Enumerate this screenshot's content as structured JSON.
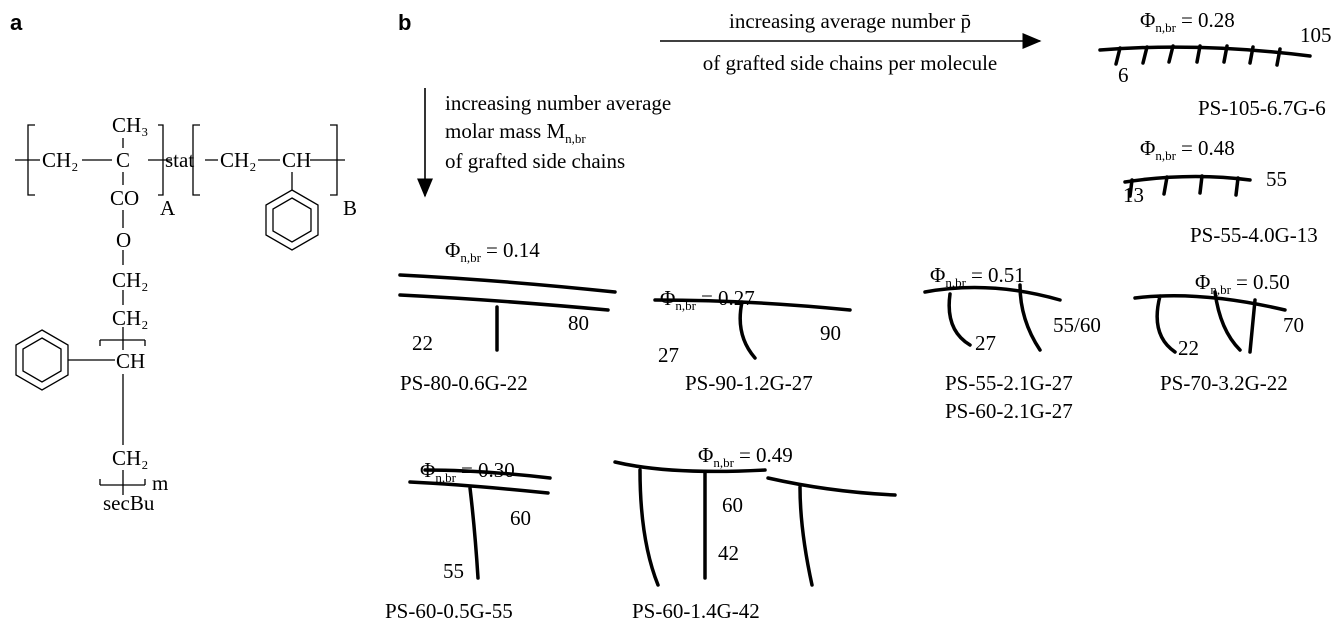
{
  "panel_a": {
    "label": "a",
    "structure": {
      "ch3": "CH₃",
      "c": "C",
      "ch2_left": "CH₂",
      "stat": "stat",
      "ch2_right": "CH₂",
      "ch_right": "CH",
      "co": "CO",
      "sub_a": "A",
      "sub_b": "B",
      "o": "O",
      "ch2_1": "CH₂",
      "ch2_2": "CH₂",
      "ch": "CH",
      "ch2_3": "CH₂",
      "m": "m",
      "secbu": "secBu"
    }
  },
  "panel_b": {
    "label": "b",
    "arrow_horizontal": {
      "line1": "increasing average number p̄",
      "line2": "of grafted side chains per molecule"
    },
    "arrow_vertical": {
      "line1": "increasing number average",
      "line2": "molar mass M",
      "line2_subscript": "n,br",
      "line3": "of grafted side chains"
    },
    "phi_symbol": "Φ",
    "phi_subscript": "n,br",
    "samples": [
      {
        "phi": "= 0.28",
        "labels": [
          "105",
          "6"
        ],
        "names": [
          "PS-105-6.7G-6"
        ]
      },
      {
        "phi": "= 0.48",
        "labels": [
          "13",
          "55"
        ],
        "names": [
          "PS-55-4.0G-13"
        ]
      },
      {
        "phi": "= 0.14",
        "labels": [
          "80",
          "22"
        ],
        "names": [
          "PS-80-0.6G-22"
        ]
      },
      {
        "phi": "= 0.27",
        "labels": [
          "90",
          "27"
        ],
        "names": [
          "PS-90-1.2G-27"
        ]
      },
      {
        "phi": "= 0.51",
        "labels": [
          "55/60",
          "27"
        ],
        "names": [
          "PS-55-2.1G-27",
          "PS-60-2.1G-27"
        ]
      },
      {
        "phi": "= 0.50",
        "labels": [
          "70",
          "22"
        ],
        "names": [
          "PS-70-3.2G-22"
        ]
      },
      {
        "phi": "= 0.30",
        "labels": [
          "60",
          "55"
        ],
        "names": [
          "PS-60-0.5G-55"
        ]
      },
      {
        "phi": "= 0.49",
        "labels": [
          "60",
          "42"
        ],
        "names": [
          "PS-60-1.4G-42"
        ]
      }
    ]
  }
}
